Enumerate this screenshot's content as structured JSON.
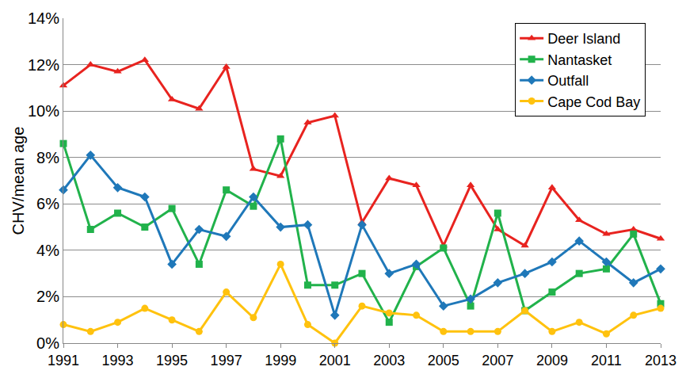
{
  "chart_data": {
    "type": "line",
    "y_label": "CHV/mean age",
    "x": [
      1991,
      1992,
      1993,
      1994,
      1995,
      1996,
      1997,
      1998,
      1999,
      2000,
      2001,
      2002,
      2003,
      2004,
      2005,
      2006,
      2007,
      2008,
      2009,
      2010,
      2011,
      2012,
      2013
    ],
    "series": [
      {
        "name": "Deer Island",
        "color": "#e8231f",
        "marker": "triangle-up",
        "values": [
          11.1,
          12.0,
          11.7,
          12.2,
          10.5,
          10.1,
          11.9,
          7.5,
          7.2,
          9.5,
          9.8,
          5.2,
          7.1,
          6.8,
          4.2,
          6.8,
          4.9,
          4.2,
          6.7,
          5.3,
          4.7,
          4.9,
          4.5
        ]
      },
      {
        "name": "Nantasket",
        "color": "#21b24b",
        "marker": "square",
        "values": [
          8.6,
          4.9,
          5.6,
          5.0,
          5.8,
          3.4,
          6.6,
          5.9,
          8.8,
          2.5,
          2.5,
          3.0,
          0.9,
          3.3,
          4.1,
          1.6,
          5.6,
          1.4,
          2.2,
          3.0,
          3.2,
          4.7,
          1.7
        ]
      },
      {
        "name": "Outfall",
        "color": "#1f78b9",
        "marker": "diamond",
        "values": [
          6.6,
          8.1,
          6.7,
          6.3,
          3.4,
          4.9,
          4.6,
          6.3,
          5.0,
          5.1,
          1.2,
          5.1,
          3.0,
          3.4,
          1.6,
          1.9,
          2.6,
          3.0,
          3.5,
          4.4,
          3.5,
          2.6,
          3.2
        ]
      },
      {
        "name": "Cape Cod Bay",
        "color": "#ffc20e",
        "marker": "circle",
        "values": [
          0.8,
          0.5,
          0.9,
          1.5,
          1.0,
          0.5,
          2.2,
          1.1,
          3.4,
          0.8,
          0.0,
          1.6,
          1.3,
          1.2,
          0.5,
          0.5,
          0.5,
          1.4,
          0.5,
          0.9,
          0.4,
          1.2,
          1.5
        ]
      }
    ],
    "xlim": [
      1991,
      2013
    ],
    "xticks": [
      1991,
      1993,
      1995,
      1997,
      1999,
      2001,
      2003,
      2005,
      2007,
      2009,
      2011,
      2013
    ],
    "ylim": [
      0,
      14
    ],
    "yticks": [
      {
        "value": 0,
        "label": "0%"
      },
      {
        "value": 2,
        "label": "2%"
      },
      {
        "value": 4,
        "label": "4%"
      },
      {
        "value": 6,
        "label": "6%"
      },
      {
        "value": 8,
        "label": "8%"
      },
      {
        "value": 10,
        "label": "10%"
      },
      {
        "value": 12,
        "label": "12%"
      },
      {
        "value": 14,
        "label": "14%"
      }
    ],
    "grid": true,
    "legend": "top-right"
  }
}
